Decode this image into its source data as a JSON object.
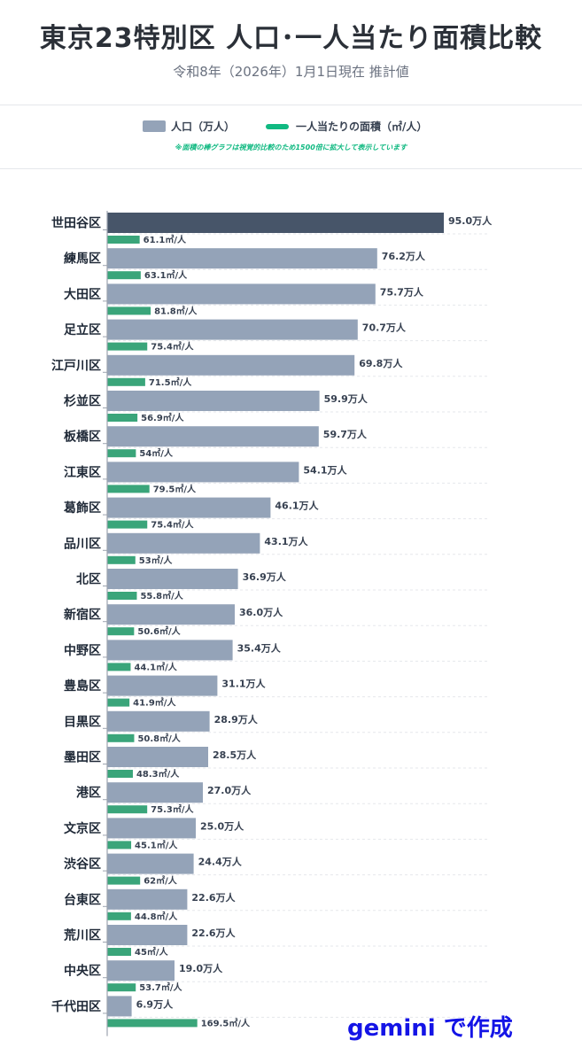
{
  "title": "東京23特別区 人口･一人当たり面積比較",
  "subtitle": "令和8年（2026年）1月1日現在 推計値",
  "legend": {
    "population_label": "人口（万人）",
    "area_label": "一人当たりの面積（㎡/人）",
    "note": "※面積の棒グラフは視覚的比較のため1500倍に拡大して表示しています"
  },
  "watermark": "gemini で作成",
  "colors": {
    "population_bar": "#94a3b8",
    "population_highlight": "#475569",
    "area_bar": "#3aa57a",
    "axis": "#9ca3af",
    "grid": "#e5e7eb"
  },
  "chart_data": {
    "type": "bar",
    "orientation": "horizontal",
    "categories": [
      "世田谷区",
      "練馬区",
      "大田区",
      "足立区",
      "江戸川区",
      "杉並区",
      "板橋区",
      "江東区",
      "葛飾区",
      "品川区",
      "北区",
      "新宿区",
      "中野区",
      "豊島区",
      "目黒区",
      "墨田区",
      "港区",
      "文京区",
      "渋谷区",
      "台東区",
      "荒川区",
      "中央区",
      "千代田区"
    ],
    "series": [
      {
        "name": "人口（万人）",
        "unit_suffix": "万人",
        "values": [
          95.0,
          76.2,
          75.7,
          70.7,
          69.8,
          59.9,
          59.7,
          54.1,
          46.1,
          43.1,
          36.9,
          36.0,
          35.4,
          31.1,
          28.9,
          28.5,
          27.0,
          25.0,
          24.4,
          22.6,
          22.6,
          19.0,
          6.9
        ],
        "labels": [
          "95.0万人",
          "76.2万人",
          "75.7万人",
          "70.7万人",
          "69.8万人",
          "59.9万人",
          "59.7万人",
          "54.1万人",
          "46.1万人",
          "43.1万人",
          "36.9万人",
          "36.0万人",
          "35.4万人",
          "31.1万人",
          "28.9万人",
          "28.5万人",
          "27.0万人",
          "25.0万人",
          "24.4万人",
          "22.6万人",
          "22.6万人",
          "19.0万人",
          "6.9万人"
        ]
      },
      {
        "name": "一人当たりの面積（㎡/人）",
        "unit_suffix": "㎡/人",
        "values": [
          61.1,
          63.1,
          81.8,
          75.4,
          71.5,
          56.9,
          54,
          79.5,
          75.4,
          53,
          55.8,
          50.6,
          44.1,
          41.9,
          50.8,
          48.3,
          75.3,
          45.1,
          62,
          44.8,
          45,
          53.7,
          169.5
        ],
        "labels": [
          "61.1㎡/人",
          "63.1㎡/人",
          "81.8㎡/人",
          "75.4㎡/人",
          "71.5㎡/人",
          "56.9㎡/人",
          "54㎡/人",
          "79.5㎡/人",
          "75.4㎡/人",
          "53㎡/人",
          "55.8㎡/人",
          "50.6㎡/人",
          "44.1㎡/人",
          "41.9㎡/人",
          "50.8㎡/人",
          "48.3㎡/人",
          "75.3㎡/人",
          "45.1㎡/人",
          "62㎡/人",
          "44.8㎡/人",
          "45㎡/人",
          "53.7㎡/人",
          "169.5㎡/人"
        ]
      }
    ],
    "highlight_category": "世田谷区",
    "area_display_scale": 1500,
    "grid": true
  }
}
